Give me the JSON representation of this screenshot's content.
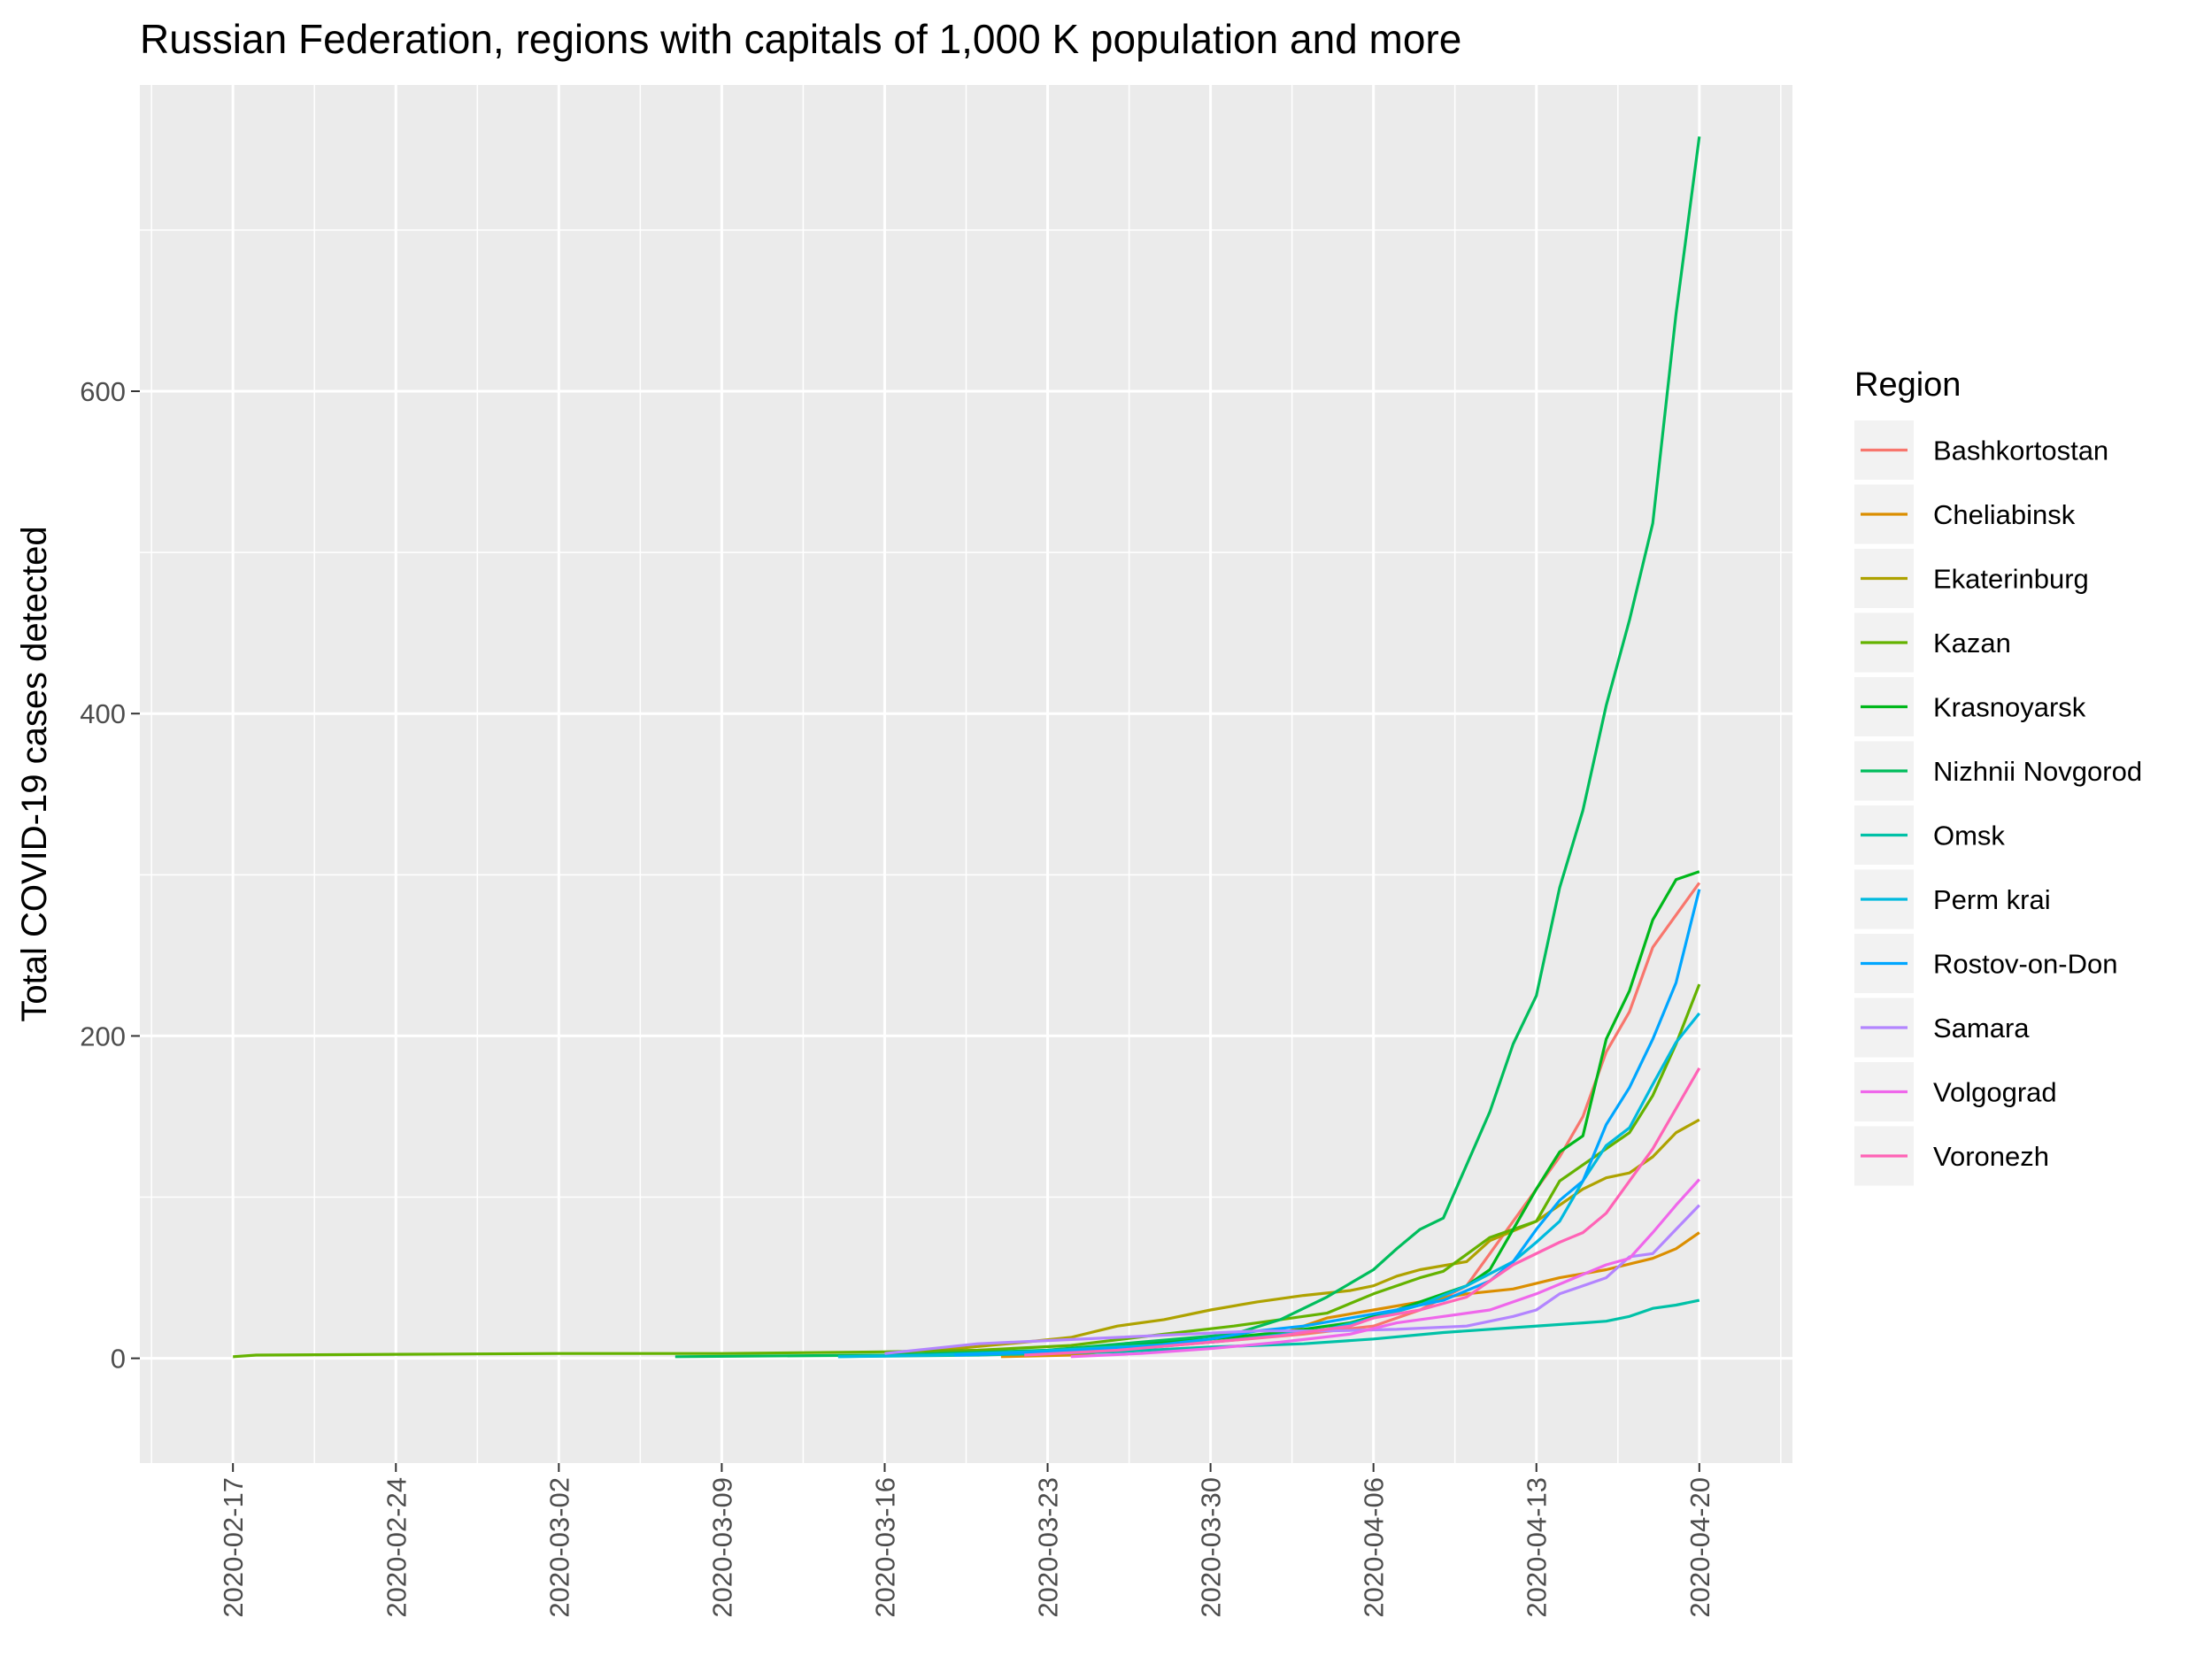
{
  "chart_data": {
    "type": "line",
    "title": "Russian Federation, regions with capitals of 1,000 K population and more",
    "xlabel": "",
    "ylabel": "Total COVID-19 cases detected",
    "x_type": "date",
    "x_range": [
      "2020-02-13",
      "2020-04-24"
    ],
    "ylim": [
      -65,
      790
    ],
    "x_ticks": [
      "2020-02-17",
      "2020-02-24",
      "2020-03-02",
      "2020-03-09",
      "2020-03-16",
      "2020-03-23",
      "2020-03-30",
      "2020-04-06",
      "2020-04-13",
      "2020-04-20"
    ],
    "y_ticks": [
      0,
      200,
      400,
      600
    ],
    "y_tick_labels": [
      "0",
      "200",
      "400",
      "600"
    ],
    "grid": true,
    "legend": {
      "title": "Region",
      "position": "right"
    },
    "series": [
      {
        "name": "Bashkortostan",
        "color": "#F8766D",
        "points": [
          [
            "2020-03-20",
            2
          ],
          [
            "2020-03-25",
            5
          ],
          [
            "2020-03-30",
            10
          ],
          [
            "2020-04-03",
            15
          ],
          [
            "2020-04-06",
            20
          ],
          [
            "2020-04-08",
            30
          ],
          [
            "2020-04-10",
            45
          ],
          [
            "2020-04-11",
            65
          ],
          [
            "2020-04-12",
            85
          ],
          [
            "2020-04-13",
            105
          ],
          [
            "2020-04-14",
            125
          ],
          [
            "2020-04-15",
            150
          ],
          [
            "2020-04-16",
            190
          ],
          [
            "2020-04-17",
            215
          ],
          [
            "2020-04-18",
            255
          ],
          [
            "2020-04-19",
            275
          ],
          [
            "2020-04-20",
            295
          ]
        ]
      },
      {
        "name": "Cheliabinsk",
        "color": "#DB8E00",
        "points": [
          [
            "2020-03-21",
            1
          ],
          [
            "2020-03-24",
            2
          ],
          [
            "2020-03-26",
            5
          ],
          [
            "2020-03-30",
            10
          ],
          [
            "2020-04-02",
            15
          ],
          [
            "2020-04-04",
            25
          ],
          [
            "2020-04-06",
            30
          ],
          [
            "2020-04-08",
            35
          ],
          [
            "2020-04-10",
            40
          ],
          [
            "2020-04-12",
            43
          ],
          [
            "2020-04-14",
            50
          ],
          [
            "2020-04-16",
            55
          ],
          [
            "2020-04-18",
            62
          ],
          [
            "2020-04-19",
            68
          ],
          [
            "2020-04-20",
            78
          ]
        ]
      },
      {
        "name": "Ekaterinburg",
        "color": "#AEA200",
        "points": [
          [
            "2020-03-16",
            3
          ],
          [
            "2020-03-19",
            6
          ],
          [
            "2020-03-22",
            10
          ],
          [
            "2020-03-24",
            13
          ],
          [
            "2020-03-26",
            20
          ],
          [
            "2020-03-28",
            24
          ],
          [
            "2020-03-30",
            30
          ],
          [
            "2020-04-01",
            35
          ],
          [
            "2020-04-03",
            39
          ],
          [
            "2020-04-05",
            42
          ],
          [
            "2020-04-06",
            45
          ],
          [
            "2020-04-07",
            51
          ],
          [
            "2020-04-08",
            55
          ],
          [
            "2020-04-10",
            60
          ],
          [
            "2020-04-11",
            73
          ],
          [
            "2020-04-13",
            85
          ],
          [
            "2020-04-14",
            95
          ],
          [
            "2020-04-15",
            105
          ],
          [
            "2020-04-16",
            112
          ],
          [
            "2020-04-17",
            115
          ],
          [
            "2020-04-18",
            125
          ],
          [
            "2020-04-19",
            140
          ],
          [
            "2020-04-20",
            148
          ]
        ]
      },
      {
        "name": "Kazan",
        "color": "#64B200",
        "points": [
          [
            "2020-02-17",
            1
          ],
          [
            "2020-02-18",
            2
          ],
          [
            "2020-02-24",
            2.5
          ],
          [
            "2020-03-02",
            3
          ],
          [
            "2020-03-09",
            3
          ],
          [
            "2020-03-16",
            4
          ],
          [
            "2020-03-20",
            5
          ],
          [
            "2020-03-24",
            8
          ],
          [
            "2020-03-28",
            15
          ],
          [
            "2020-03-31",
            20
          ],
          [
            "2020-04-02",
            24
          ],
          [
            "2020-04-04",
            28
          ],
          [
            "2020-04-06",
            40
          ],
          [
            "2020-04-08",
            50
          ],
          [
            "2020-04-09",
            54
          ],
          [
            "2020-04-11",
            75
          ],
          [
            "2020-04-13",
            85
          ],
          [
            "2020-04-14",
            110
          ],
          [
            "2020-04-15",
            120
          ],
          [
            "2020-04-17",
            140
          ],
          [
            "2020-04-18",
            163
          ],
          [
            "2020-04-19",
            195
          ],
          [
            "2020-04-20",
            232
          ]
        ]
      },
      {
        "name": "Krasnoyarsk",
        "color": "#00B81B",
        "points": [
          [
            "2020-03-18",
            2
          ],
          [
            "2020-03-22",
            4
          ],
          [
            "2020-03-26",
            8
          ],
          [
            "2020-03-30",
            12
          ],
          [
            "2020-04-02",
            16
          ],
          [
            "2020-04-05",
            22
          ],
          [
            "2020-04-07",
            30
          ],
          [
            "2020-04-08",
            35
          ],
          [
            "2020-04-10",
            45
          ],
          [
            "2020-04-11",
            55
          ],
          [
            "2020-04-12",
            80
          ],
          [
            "2020-04-13",
            105
          ],
          [
            "2020-04-14",
            128
          ],
          [
            "2020-04-15",
            138
          ],
          [
            "2020-04-16",
            198
          ],
          [
            "2020-04-17",
            228
          ],
          [
            "2020-04-18",
            272
          ],
          [
            "2020-04-19",
            297
          ],
          [
            "2020-04-20",
            302
          ]
        ]
      },
      {
        "name": "Nizhnii Novgorod",
        "color": "#00BD5C",
        "points": [
          [
            "2020-03-07",
            1
          ],
          [
            "2020-03-16",
            2
          ],
          [
            "2020-03-23",
            5
          ],
          [
            "2020-03-27",
            10
          ],
          [
            "2020-03-31",
            15
          ],
          [
            "2020-04-02",
            24
          ],
          [
            "2020-04-04",
            38
          ],
          [
            "2020-04-06",
            55
          ],
          [
            "2020-04-07",
            68
          ],
          [
            "2020-04-08",
            80
          ],
          [
            "2020-04-09",
            87
          ],
          [
            "2020-04-10",
            120
          ],
          [
            "2020-04-11",
            153
          ],
          [
            "2020-04-12",
            195
          ],
          [
            "2020-04-13",
            225
          ],
          [
            "2020-04-14",
            292
          ],
          [
            "2020-04-15",
            340
          ],
          [
            "2020-04-16",
            405
          ],
          [
            "2020-04-17",
            458
          ],
          [
            "2020-04-18",
            518
          ],
          [
            "2020-04-19",
            648
          ],
          [
            "2020-04-20",
            758
          ]
        ]
      },
      {
        "name": "Omsk",
        "color": "#00C1A7",
        "points": [
          [
            "2020-03-14",
            1
          ],
          [
            "2020-03-20",
            2
          ],
          [
            "2020-03-26",
            4
          ],
          [
            "2020-03-30",
            7
          ],
          [
            "2020-04-03",
            9
          ],
          [
            "2020-04-06",
            12
          ],
          [
            "2020-04-09",
            16
          ],
          [
            "2020-04-12",
            19
          ],
          [
            "2020-04-15",
            22
          ],
          [
            "2020-04-16",
            23
          ],
          [
            "2020-04-17",
            26
          ],
          [
            "2020-04-18",
            31
          ],
          [
            "2020-04-19",
            33
          ],
          [
            "2020-04-20",
            36
          ]
        ]
      },
      {
        "name": "Perm krai",
        "color": "#00BADE",
        "points": [
          [
            "2020-03-14",
            1
          ],
          [
            "2020-03-18",
            2
          ],
          [
            "2020-03-22",
            4
          ],
          [
            "2020-03-26",
            7
          ],
          [
            "2020-03-30",
            10
          ],
          [
            "2020-04-01",
            13
          ],
          [
            "2020-04-04",
            18
          ],
          [
            "2020-04-06",
            25
          ],
          [
            "2020-04-08",
            33
          ],
          [
            "2020-04-10",
            45
          ],
          [
            "2020-04-12",
            60
          ],
          [
            "2020-04-13",
            72
          ],
          [
            "2020-04-14",
            85
          ],
          [
            "2020-04-15",
            110
          ],
          [
            "2020-04-16",
            132
          ],
          [
            "2020-04-17",
            143
          ],
          [
            "2020-04-18",
            170
          ],
          [
            "2020-04-19",
            196
          ],
          [
            "2020-04-20",
            214
          ]
        ]
      },
      {
        "name": "Rostov-on-Don",
        "color": "#00A6FF",
        "points": [
          [
            "2020-03-19",
            2
          ],
          [
            "2020-03-23",
            4
          ],
          [
            "2020-03-27",
            7
          ],
          [
            "2020-03-30",
            12
          ],
          [
            "2020-04-01",
            17
          ],
          [
            "2020-04-03",
            20
          ],
          [
            "2020-04-05",
            25
          ],
          [
            "2020-04-07",
            30
          ],
          [
            "2020-04-09",
            36
          ],
          [
            "2020-04-11",
            48
          ],
          [
            "2020-04-12",
            60
          ],
          [
            "2020-04-13",
            80
          ],
          [
            "2020-04-14",
            98
          ],
          [
            "2020-04-15",
            110
          ],
          [
            "2020-04-16",
            145
          ],
          [
            "2020-04-17",
            168
          ],
          [
            "2020-04-18",
            198
          ],
          [
            "2020-04-19",
            233
          ],
          [
            "2020-04-20",
            291
          ]
        ]
      },
      {
        "name": "Samara",
        "color": "#B385FF",
        "points": [
          [
            "2020-03-16",
            3
          ],
          [
            "2020-03-18",
            6
          ],
          [
            "2020-03-20",
            9
          ],
          [
            "2020-03-23",
            11
          ],
          [
            "2020-03-26",
            13
          ],
          [
            "2020-03-29",
            15
          ],
          [
            "2020-04-01",
            17
          ],
          [
            "2020-04-04",
            17
          ],
          [
            "2020-04-07",
            18
          ],
          [
            "2020-04-10",
            20
          ],
          [
            "2020-04-12",
            26
          ],
          [
            "2020-04-13",
            30
          ],
          [
            "2020-04-14",
            40
          ],
          [
            "2020-04-16",
            50
          ],
          [
            "2020-04-17",
            63
          ],
          [
            "2020-04-18",
            65
          ],
          [
            "2020-04-19",
            80
          ],
          [
            "2020-04-20",
            95
          ]
        ]
      },
      {
        "name": "Volgograd",
        "color": "#EF67EB",
        "points": [
          [
            "2020-03-24",
            1
          ],
          [
            "2020-03-27",
            3
          ],
          [
            "2020-03-30",
            6
          ],
          [
            "2020-04-02",
            10
          ],
          [
            "2020-04-05",
            15
          ],
          [
            "2020-04-07",
            22
          ],
          [
            "2020-04-09",
            26
          ],
          [
            "2020-04-11",
            30
          ],
          [
            "2020-04-13",
            40
          ],
          [
            "2020-04-15",
            52
          ],
          [
            "2020-04-16",
            58
          ],
          [
            "2020-04-17",
            62
          ],
          [
            "2020-04-18",
            78
          ],
          [
            "2020-04-19",
            95
          ],
          [
            "2020-04-20",
            111
          ]
        ]
      },
      {
        "name": "Voronezh",
        "color": "#FF63B6",
        "points": [
          [
            "2020-03-22",
            2
          ],
          [
            "2020-03-26",
            5
          ],
          [
            "2020-03-30",
            10
          ],
          [
            "2020-04-02",
            14
          ],
          [
            "2020-04-05",
            20
          ],
          [
            "2020-04-06",
            25
          ],
          [
            "2020-04-08",
            30
          ],
          [
            "2020-04-10",
            38
          ],
          [
            "2020-04-12",
            58
          ],
          [
            "2020-04-14",
            72
          ],
          [
            "2020-04-15",
            78
          ],
          [
            "2020-04-16",
            90
          ],
          [
            "2020-04-17",
            110
          ],
          [
            "2020-04-18",
            130
          ],
          [
            "2020-04-19",
            155
          ],
          [
            "2020-04-20",
            180
          ]
        ]
      }
    ]
  }
}
